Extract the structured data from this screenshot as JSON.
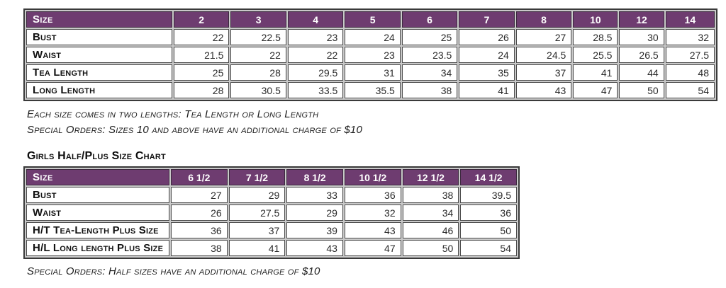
{
  "colors": {
    "header_bg": "#6e3c70",
    "header_text": "#ffffff",
    "cell_bg": "#ffffff",
    "grid": "#4c4c4c",
    "text": "#1e1e1e"
  },
  "size_chart": {
    "header": [
      "Size",
      "2",
      "3",
      "4",
      "5",
      "6",
      "7",
      "8",
      "10",
      "12",
      "14"
    ],
    "rows": [
      {
        "label": "Bust",
        "values": [
          "22",
          "22.5",
          "23",
          "24",
          "25",
          "26",
          "27",
          "28.5",
          "30",
          "32"
        ]
      },
      {
        "label": "Waist",
        "values": [
          "21.5",
          "22",
          "22",
          "23",
          "23.5",
          "24",
          "24.5",
          "25.5",
          "26.5",
          "27.5"
        ]
      },
      {
        "label": "Tea Length",
        "values": [
          "25",
          "28",
          "29.5",
          "31",
          "34",
          "35",
          "37",
          "41",
          "44",
          "48"
        ]
      },
      {
        "label": "Long Length",
        "values": [
          "28",
          "30.5",
          "33.5",
          "35.5",
          "38",
          "41",
          "43",
          "47",
          "50",
          "54"
        ]
      }
    ],
    "notes": [
      "Each size comes in two lengths: Tea Length or Long Length",
      "Special Orders: Sizes 10 and above have an additional charge of $10"
    ]
  },
  "half_plus_chart": {
    "title": "Girls Half/Plus Size Chart",
    "header": [
      "Size",
      "6 1/2",
      "7 1/2",
      "8 1/2",
      "10 1/2",
      "12 1/2",
      "14 1/2"
    ],
    "rows": [
      {
        "label": "Bust",
        "values": [
          "27",
          "29",
          "33",
          "36",
          "38",
          "39.5"
        ]
      },
      {
        "label": "Waist",
        "values": [
          "26",
          "27.5",
          "29",
          "32",
          "34",
          "36"
        ]
      },
      {
        "label": "H/T Tea-Length Plus Size",
        "values": [
          "36",
          "37",
          "39",
          "43",
          "46",
          "50"
        ]
      },
      {
        "label": "H/L Long length Plus Size",
        "values": [
          "38",
          "41",
          "43",
          "47",
          "50",
          "54"
        ]
      }
    ],
    "notes": [
      "Special Orders: Half sizes have an additional charge of $10"
    ]
  }
}
